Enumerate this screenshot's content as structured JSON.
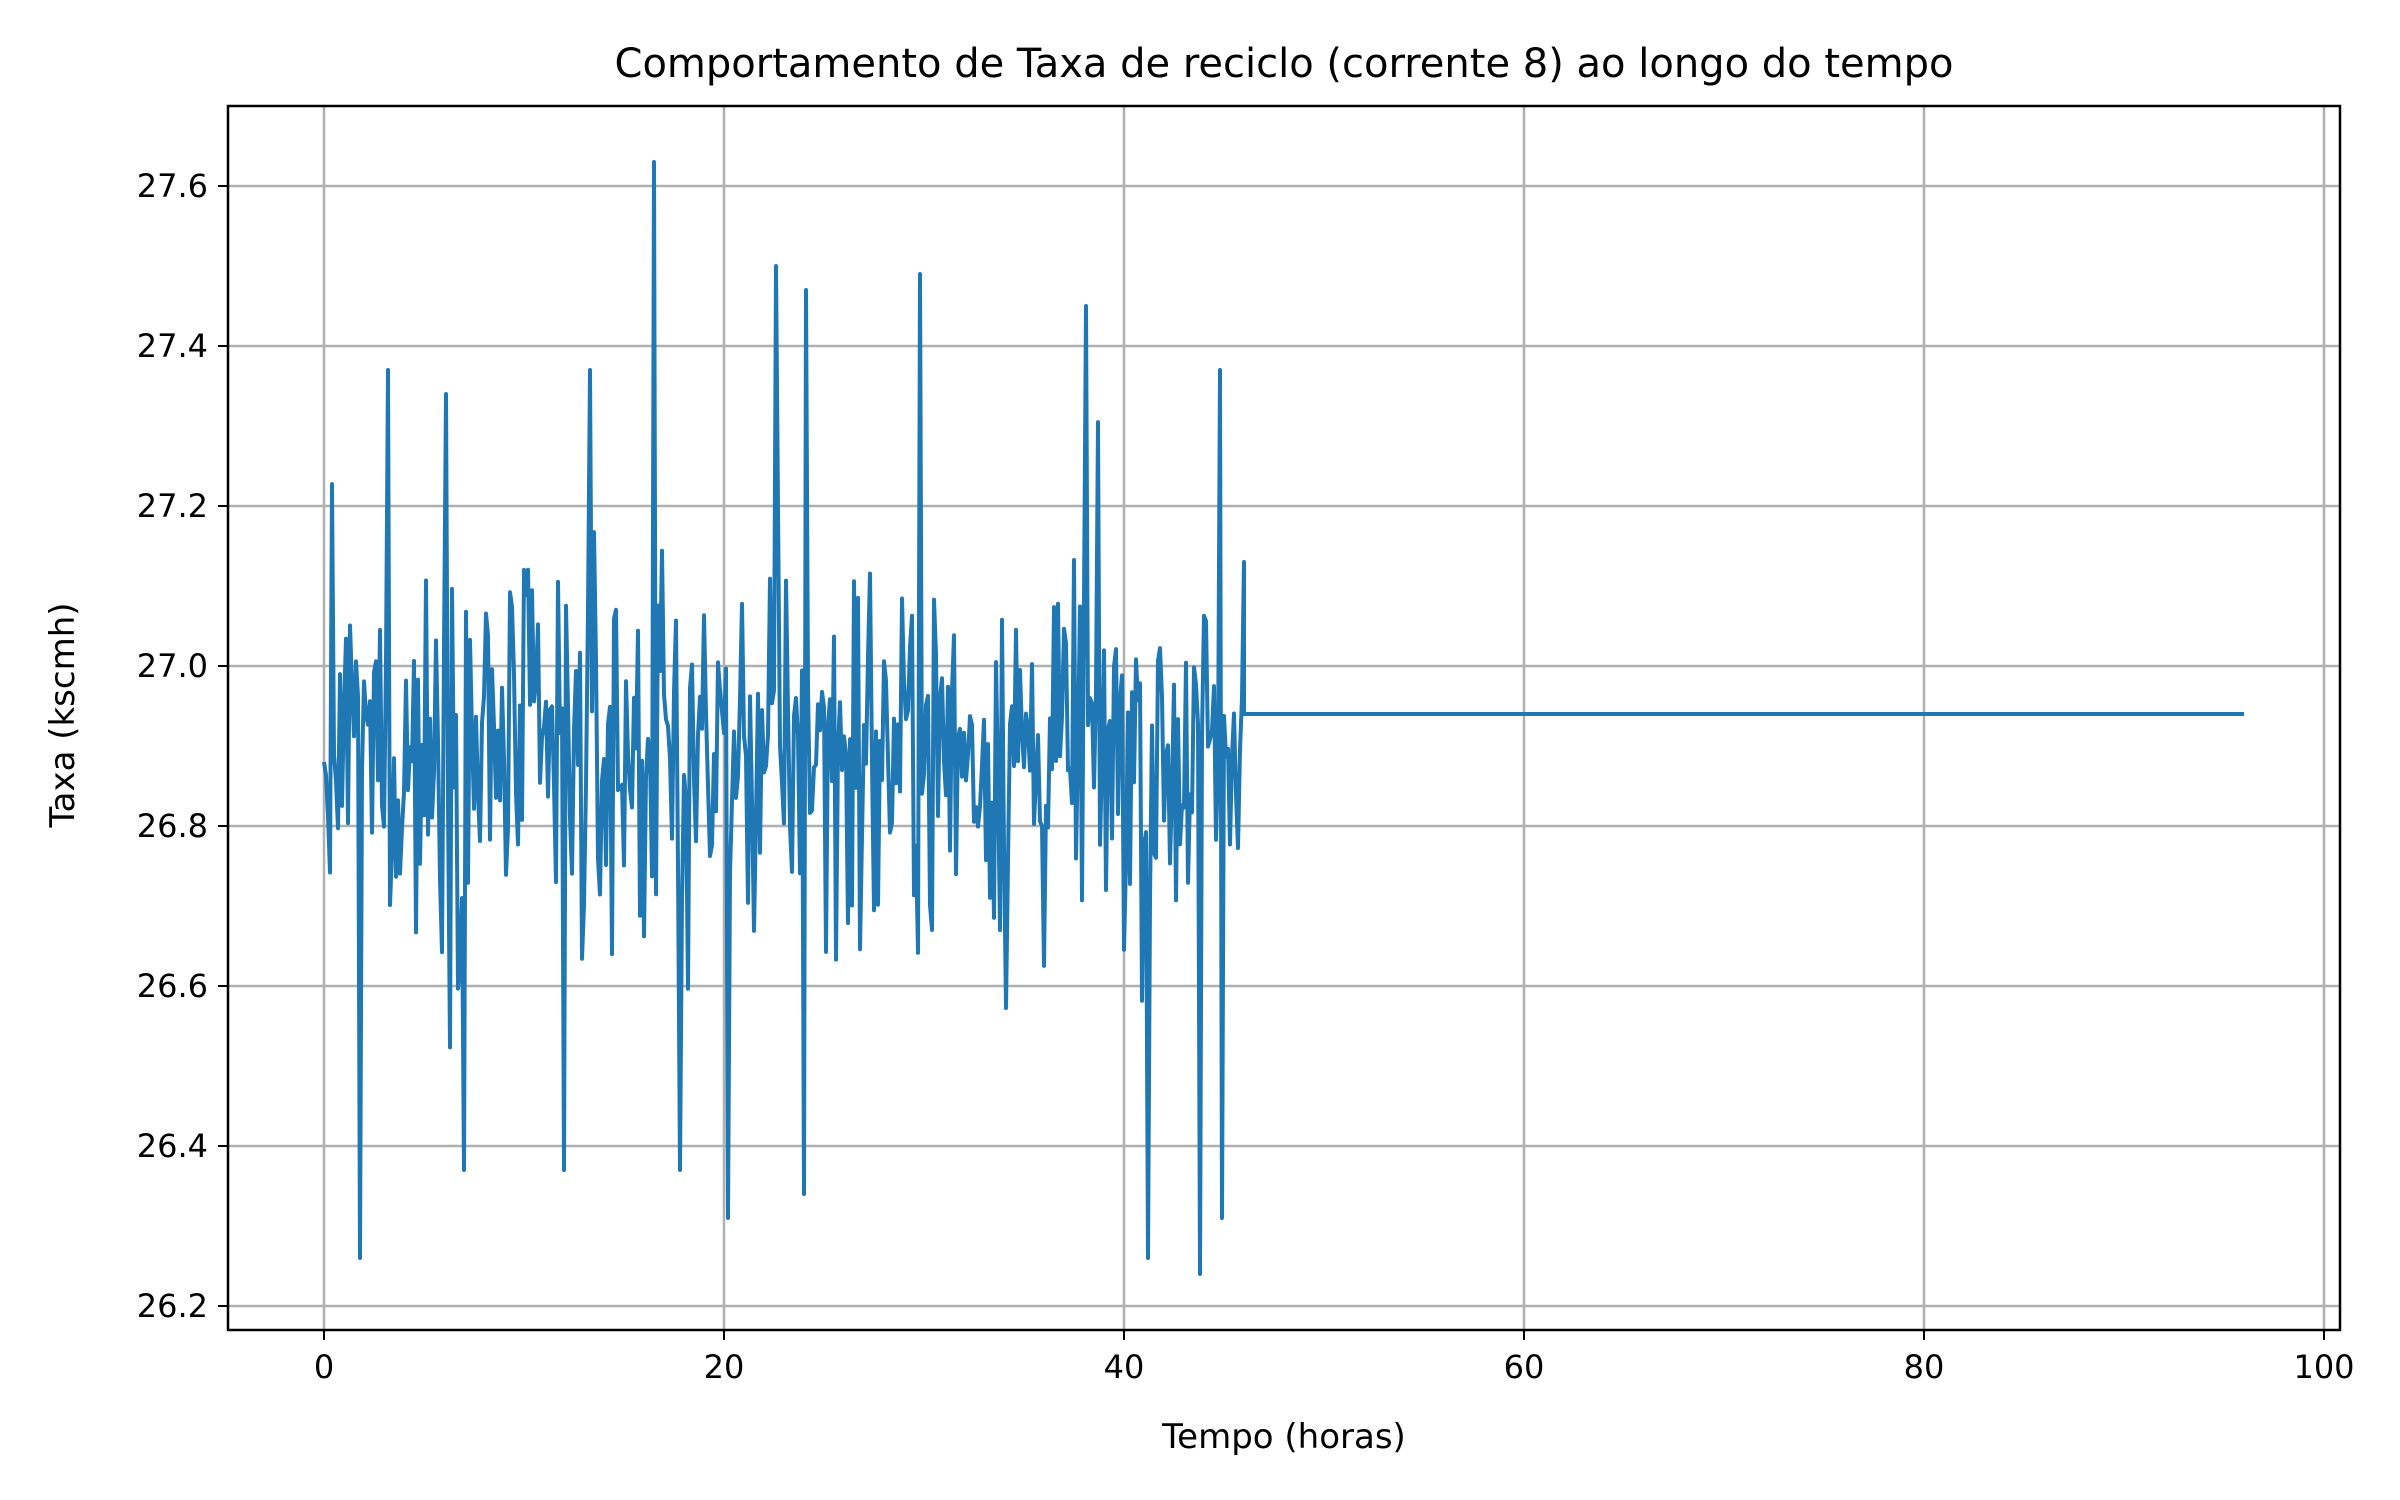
{
  "chart_data": {
    "type": "line",
    "title": "Comportamento de Taxa de reciclo (corrente 8) ao longo do tempo",
    "xlabel": "Tempo (horas)",
    "ylabel": "Taxa (kscmh)",
    "xlim": [
      -4.8,
      100.8
    ],
    "ylim": [
      26.17,
      27.7
    ],
    "xticks": [
      0,
      20,
      40,
      60,
      80,
      100
    ],
    "yticks": [
      26.2,
      26.4,
      26.6,
      26.8,
      27.0,
      27.2,
      27.4,
      27.6
    ],
    "xtick_labels": [
      "0",
      "20",
      "40",
      "60",
      "80",
      "100"
    ],
    "ytick_labels": [
      "26.2",
      "26.4",
      "26.6",
      "26.8",
      "27.0",
      "27.2",
      "27.4",
      "27.6"
    ],
    "grid": true,
    "color": "#1f77b4",
    "series": [
      {
        "noisy_segment": {
          "x_start": 0.0,
          "x_end": 46.0,
          "step": 0.1,
          "mean": 26.89,
          "typical_range": [
            26.55,
            27.25
          ],
          "y_min": 26.24,
          "y_max": 27.63,
          "first_value": 26.88,
          "last_value": 27.13
        },
        "flat_segment": {
          "x": [
            46.0,
            96.0
          ],
          "y": [
            26.94,
            26.94
          ]
        },
        "spikes": [
          {
            "x": 1.8,
            "y": 26.26
          },
          {
            "x": 3.2,
            "y": 27.37
          },
          {
            "x": 6.1,
            "y": 27.34
          },
          {
            "x": 7.0,
            "y": 26.37
          },
          {
            "x": 12.0,
            "y": 26.37
          },
          {
            "x": 13.3,
            "y": 27.37
          },
          {
            "x": 16.5,
            "y": 27.63
          },
          {
            "x": 17.8,
            "y": 26.37
          },
          {
            "x": 20.2,
            "y": 26.31
          },
          {
            "x": 22.6,
            "y": 27.5
          },
          {
            "x": 24.0,
            "y": 26.34
          },
          {
            "x": 24.1,
            "y": 27.47
          },
          {
            "x": 29.8,
            "y": 27.49
          },
          {
            "x": 38.1,
            "y": 27.45
          },
          {
            "x": 41.2,
            "y": 26.26
          },
          {
            "x": 43.8,
            "y": 26.24
          },
          {
            "x": 44.8,
            "y": 27.37
          },
          {
            "x": 44.9,
            "y": 26.31
          }
        ]
      }
    ]
  }
}
